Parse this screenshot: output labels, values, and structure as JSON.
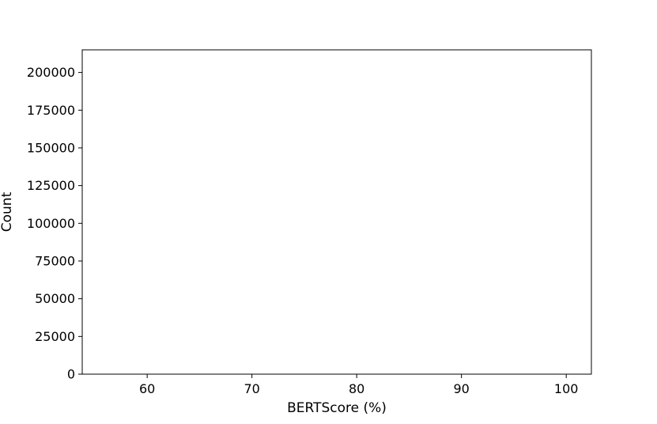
{
  "chart_data": {
    "type": "bar",
    "subtype": "histogram",
    "title": "",
    "xlabel": "BERTScore (%)",
    "ylabel": "Count",
    "xlim": [
      53.8,
      102.4
    ],
    "ylim": [
      0,
      215000
    ],
    "xticks": [
      60,
      70,
      80,
      90,
      100
    ],
    "yticks": [
      0,
      25000,
      50000,
      75000,
      100000,
      125000,
      150000,
      175000,
      200000
    ],
    "grid": false,
    "legend": "none",
    "bar_fill": "#9999ee",
    "bar_edge": "#555577",
    "bin_start": 55.3,
    "bin_width": 0.5,
    "values": [
      0,
      0,
      0,
      0,
      0,
      0,
      0,
      0,
      0,
      0,
      0,
      0,
      0,
      0,
      0,
      0,
      0,
      0,
      0,
      0,
      0,
      0,
      0,
      0,
      0,
      0,
      0,
      0,
      0,
      0,
      0,
      0,
      0,
      0,
      0,
      0,
      0,
      0,
      0,
      0,
      0,
      0,
      0,
      0,
      0,
      0,
      0,
      0,
      0,
      0,
      0,
      0,
      0,
      0,
      0,
      0,
      0,
      0,
      0,
      0,
      0,
      0,
      0,
      0,
      0,
      0,
      0,
      0,
      0,
      0,
      0,
      0,
      0,
      0,
      0,
      0,
      0,
      0,
      0,
      0,
      0,
      0,
      0,
      0,
      0,
      0,
      0,
      0,
      0,
      0,
      0
    ]
  }
}
